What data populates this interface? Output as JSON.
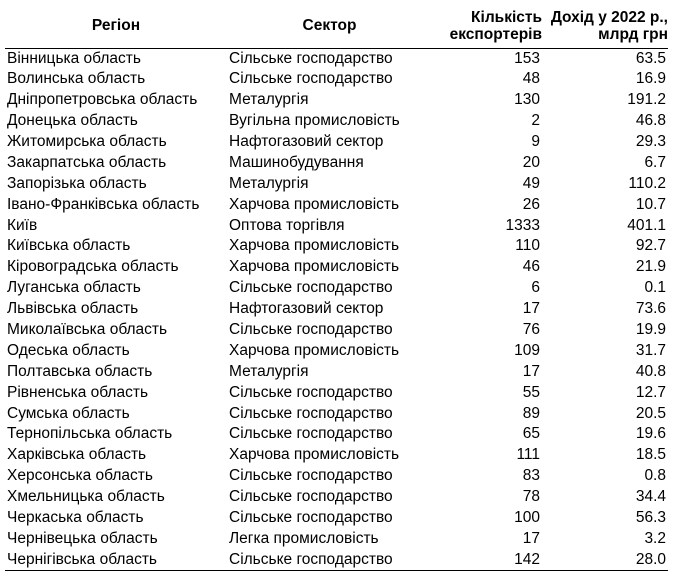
{
  "table": {
    "headers": {
      "region": "Регіон",
      "sector": "Сектор",
      "exporters_line1": "Кількість",
      "exporters_line2": "експортерів",
      "income_line1": "Дохід у 2022 р.,",
      "income_line2": "млрд грн"
    },
    "rows": [
      {
        "region": "Вінницька область",
        "sector": "Сільське господарство",
        "exporters": "153",
        "income": "63.5"
      },
      {
        "region": "Волинська область",
        "sector": "Сільське господарство",
        "exporters": "48",
        "income": "16.9"
      },
      {
        "region": "Дніпропетровська область",
        "sector": "Металургія",
        "exporters": "130",
        "income": "191.2"
      },
      {
        "region": "Донецька область",
        "sector": "Вугільна промисловість",
        "exporters": "2",
        "income": "46.8"
      },
      {
        "region": "Житомирська область",
        "sector": "Нафтогазовий сектор",
        "exporters": "9",
        "income": "29.3"
      },
      {
        "region": "Закарпатська область",
        "sector": "Машинобудування",
        "exporters": "20",
        "income": "6.7"
      },
      {
        "region": "Запорізька область",
        "sector": "Металургія",
        "exporters": "49",
        "income": "110.2"
      },
      {
        "region": "Івано-Франківська область",
        "sector": "Харчова промисловість",
        "exporters": "26",
        "income": "10.7"
      },
      {
        "region": "Київ",
        "sector": "Оптова торгівля",
        "exporters": "1333",
        "income": "401.1"
      },
      {
        "region": "Київська область",
        "sector": "Харчова промисловість",
        "exporters": "110",
        "income": "92.7"
      },
      {
        "region": "Кіровоградська область",
        "sector": "Харчова промисловість",
        "exporters": "46",
        "income": "21.9"
      },
      {
        "region": "Луганська область",
        "sector": "Сільське господарство",
        "exporters": "6",
        "income": "0.1"
      },
      {
        "region": "Львівська область",
        "sector": "Нафтогазовий сектор",
        "exporters": "17",
        "income": "73.6"
      },
      {
        "region": "Миколаївська область",
        "sector": "Сільське господарство",
        "exporters": "76",
        "income": "19.9"
      },
      {
        "region": "Одеська область",
        "sector": "Харчова промисловість",
        "exporters": "109",
        "income": "31.7"
      },
      {
        "region": "Полтавська область",
        "sector": "Металургія",
        "exporters": "17",
        "income": "40.8"
      },
      {
        "region": "Рівненська область",
        "sector": "Сільське господарство",
        "exporters": "55",
        "income": "12.7"
      },
      {
        "region": "Сумська область",
        "sector": "Сільське господарство",
        "exporters": "89",
        "income": "20.5"
      },
      {
        "region": "Тернопільська область",
        "sector": "Сільське господарство",
        "exporters": "65",
        "income": "19.6"
      },
      {
        "region": "Харківська область",
        "sector": "Харчова промисловість",
        "exporters": "111",
        "income": "18.5"
      },
      {
        "region": "Херсонська область",
        "sector": "Сільське господарство",
        "exporters": "83",
        "income": "0.8"
      },
      {
        "region": "Хмельницька область",
        "sector": "Сільське господарство",
        "exporters": "78",
        "income": "34.4"
      },
      {
        "region": "Черкаська область",
        "sector": "Сільське господарство",
        "exporters": "100",
        "income": "56.3"
      },
      {
        "region": "Чернівецька область",
        "sector": "Легка промисловість",
        "exporters": "17",
        "income": "3.2"
      },
      {
        "region": "Чернігівська область",
        "sector": "Сільське господарство",
        "exporters": "142",
        "income": "28.0"
      }
    ]
  }
}
